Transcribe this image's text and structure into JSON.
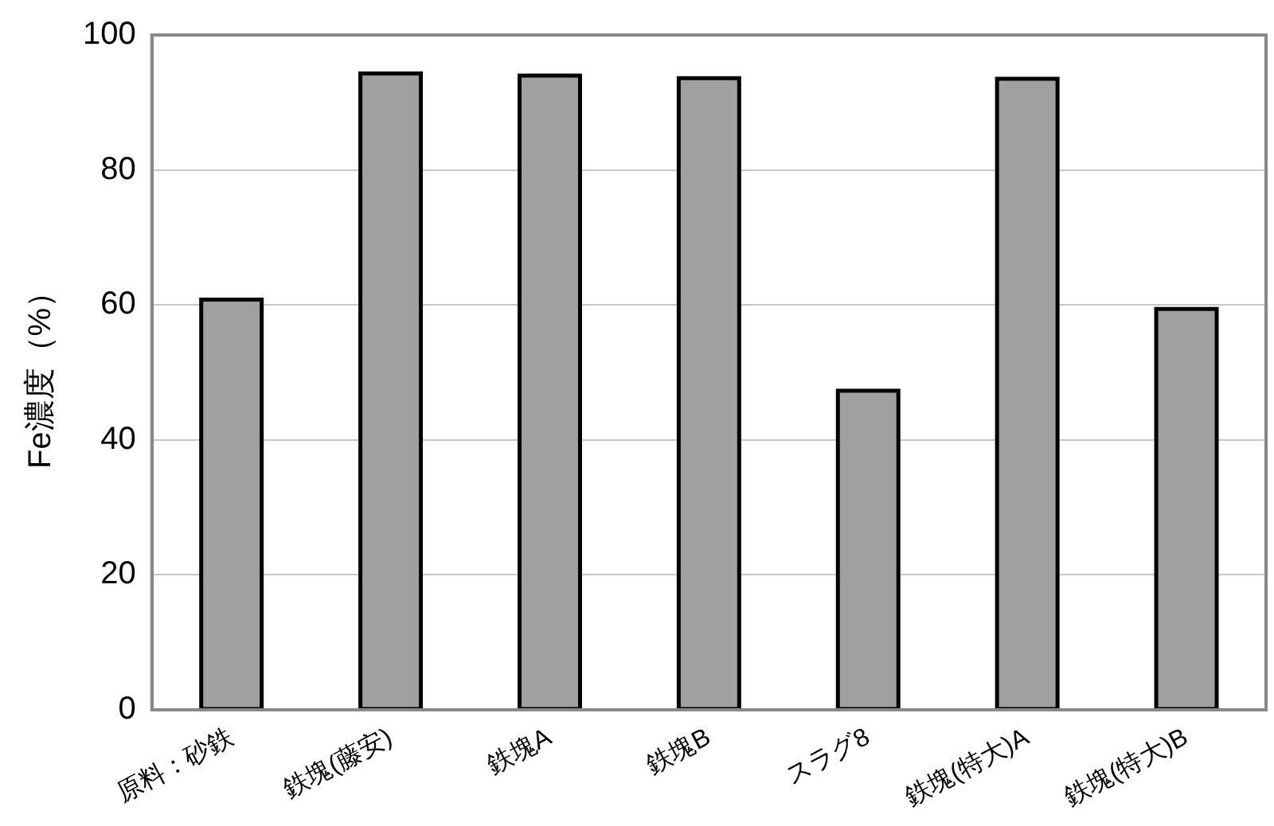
{
  "chart_data": {
    "type": "bar",
    "ylabel": "Fe濃度（%）",
    "categories": [
      "原料：砂鉄",
      "鉄塊(藤安)",
      "鉄塊A",
      "鉄塊B",
      "スラグ8",
      "鉄塊(特大)A",
      "鉄塊(特大)B"
    ],
    "values": [
      60.8,
      94.3,
      94.0,
      93.6,
      47.3,
      93.5,
      59.4
    ],
    "color": "#a0a0a0",
    "ylim": [
      0,
      100
    ],
    "yticks": [
      0,
      20,
      40,
      60,
      80,
      100
    ],
    "grid": "y",
    "legend": false
  }
}
